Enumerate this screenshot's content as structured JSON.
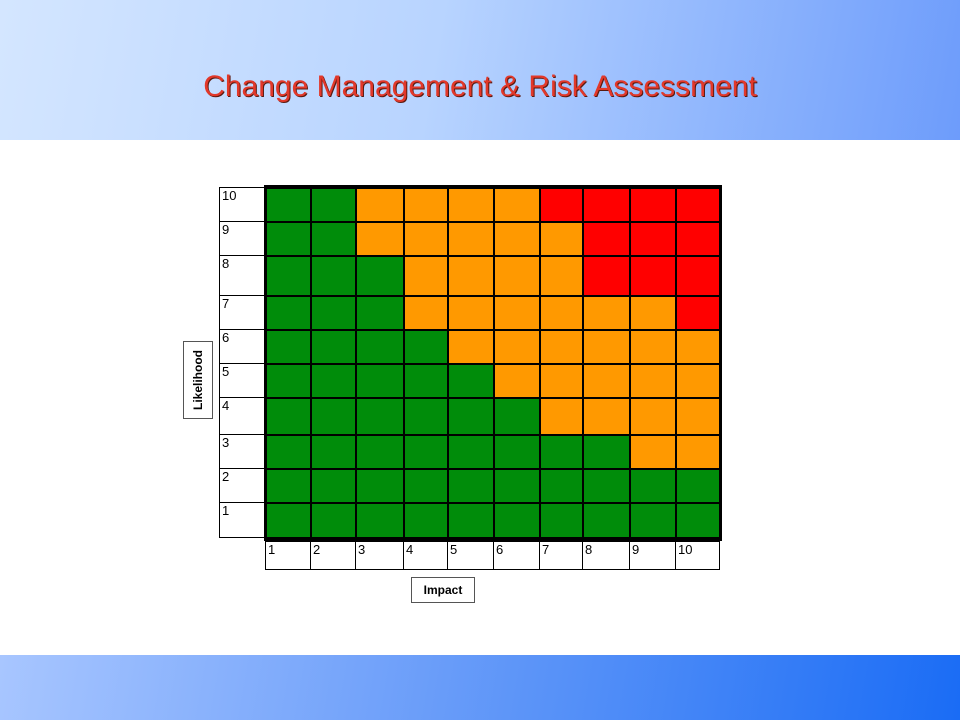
{
  "title": "Change Management & Risk Assessment",
  "axes": {
    "y_label": "Likelihood",
    "x_label": "Impact"
  },
  "colors": {
    "G": "#008c0a",
    "O": "#ff9900",
    "R": "#ff0000"
  },
  "y_ticks": [
    "10",
    "9",
    "8",
    "7",
    "6",
    "5",
    "4",
    "3",
    "2",
    "1"
  ],
  "x_ticks": [
    "1",
    "2",
    "3",
    "4",
    "5",
    "6",
    "7",
    "8",
    "9",
    "10"
  ],
  "grid_rows": [
    [
      "G",
      "G",
      "O",
      "O",
      "O",
      "O",
      "R",
      "R",
      "R",
      "R"
    ],
    [
      "G",
      "G",
      "O",
      "O",
      "O",
      "O",
      "O",
      "R",
      "R",
      "R"
    ],
    [
      "G",
      "G",
      "G",
      "O",
      "O",
      "O",
      "O",
      "R",
      "R",
      "R"
    ],
    [
      "G",
      "G",
      "G",
      "O",
      "O",
      "O",
      "O",
      "O",
      "O",
      "R"
    ],
    [
      "G",
      "G",
      "G",
      "G",
      "O",
      "O",
      "O",
      "O",
      "O",
      "O"
    ],
    [
      "G",
      "G",
      "G",
      "G",
      "G",
      "O",
      "O",
      "O",
      "O",
      "O"
    ],
    [
      "G",
      "G",
      "G",
      "G",
      "G",
      "G",
      "O",
      "O",
      "O",
      "O"
    ],
    [
      "G",
      "G",
      "G",
      "G",
      "G",
      "G",
      "G",
      "G",
      "O",
      "O"
    ],
    [
      "G",
      "G",
      "G",
      "G",
      "G",
      "G",
      "G",
      "G",
      "G",
      "G"
    ],
    [
      "G",
      "G",
      "G",
      "G",
      "G",
      "G",
      "G",
      "G",
      "G",
      "G"
    ]
  ]
}
